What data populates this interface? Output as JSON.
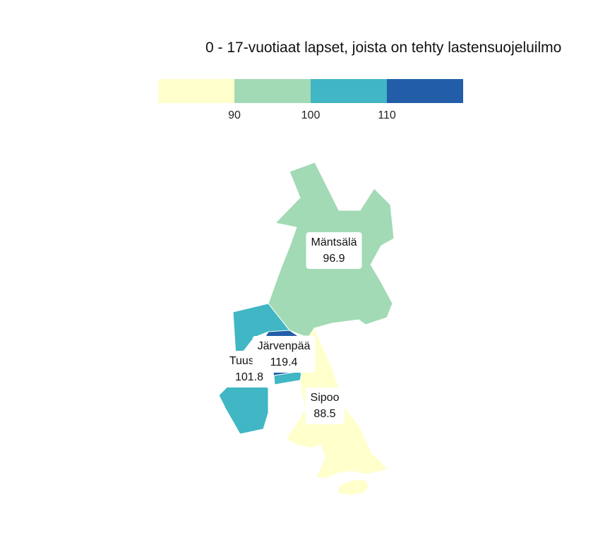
{
  "title": "0 - 17-vuotiaat lapset, joista on tehty lastensuojeluilmo",
  "legend": {
    "colors": [
      "#ffffcc",
      "#a1dab4",
      "#41b6c4",
      "#225ea8"
    ],
    "ticks": [
      "90",
      "100",
      "110"
    ]
  },
  "regions": [
    {
      "name": "Mäntsälä",
      "value": "96.9",
      "color": "#a1dab4"
    },
    {
      "name": "Järvenpää",
      "value": "119.4",
      "color": "#225ea8"
    },
    {
      "name": "Tuusula",
      "value": "101.8",
      "color": "#41b6c4"
    },
    {
      "name": "Sipoo",
      "value": "88.5",
      "color": "#ffffcc"
    }
  ]
}
